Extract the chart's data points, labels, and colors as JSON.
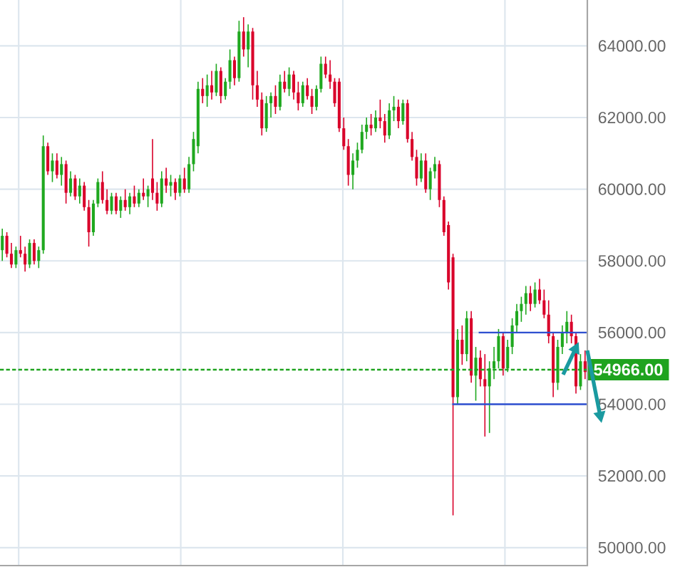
{
  "chart_data": {
    "type": "candlestick",
    "categories": [
      null,
      null,
      null,
      null,
      null,
      null,
      null,
      null,
      null,
      null,
      null,
      null,
      null,
      null,
      null,
      null,
      null,
      null,
      null,
      null,
      null,
      null,
      null,
      null,
      null,
      null,
      null,
      null,
      null,
      null,
      null,
      null,
      null,
      null,
      null,
      null,
      null,
      null,
      null,
      null,
      null,
      null,
      null,
      null,
      null,
      null,
      null,
      null,
      null,
      null,
      null,
      null,
      null,
      null,
      null,
      null,
      null,
      null,
      null,
      null,
      null,
      null,
      null,
      null,
      null,
      null,
      null,
      null,
      null,
      null,
      null,
      null,
      null,
      null,
      null,
      null,
      null,
      null,
      null,
      null,
      null,
      null,
      null,
      null,
      null,
      null,
      null,
      null,
      null,
      null,
      null,
      null,
      null,
      null,
      null,
      null,
      null,
      null,
      null,
      null,
      null,
      null,
      null,
      null,
      null,
      null,
      null,
      null,
      null,
      null,
      null,
      null,
      null,
      null,
      null,
      null,
      null,
      null,
      null,
      null,
      null,
      null,
      null,
      null,
      null,
      null,
      null,
      null,
      null
    ],
    "ohlc": [
      [
        58300,
        58900,
        58000,
        58700
      ],
      [
        58700,
        58800,
        58100,
        58200
      ],
      [
        58200,
        58500,
        57800,
        57900
      ],
      [
        57900,
        58400,
        57800,
        58300
      ],
      [
        58300,
        58700,
        58100,
        58200
      ],
      [
        58200,
        58400,
        57700,
        57900
      ],
      [
        57900,
        58600,
        57800,
        58500
      ],
      [
        58500,
        58600,
        57900,
        58000
      ],
      [
        58000,
        58400,
        57800,
        58300
      ],
      [
        58300,
        61500,
        58200,
        61200
      ],
      [
        61200,
        61300,
        60400,
        60500
      ],
      [
        60500,
        61000,
        60200,
        60800
      ],
      [
        60800,
        61000,
        60300,
        60400
      ],
      [
        60400,
        60900,
        60100,
        60700
      ],
      [
        60700,
        60800,
        59600,
        59900
      ],
      [
        59900,
        60500,
        59800,
        60300
      ],
      [
        60300,
        60400,
        59700,
        59800
      ],
      [
        59800,
        60300,
        59600,
        60100
      ],
      [
        60100,
        60200,
        59400,
        59500
      ],
      [
        59500,
        59700,
        58400,
        58800
      ],
      [
        58800,
        59700,
        58700,
        59600
      ],
      [
        59600,
        60300,
        59500,
        60200
      ],
      [
        60200,
        60500,
        59600,
        59700
      ],
      [
        59700,
        60000,
        59300,
        59400
      ],
      [
        59400,
        59900,
        59300,
        59800
      ],
      [
        59800,
        59900,
        59300,
        59400
      ],
      [
        59400,
        59800,
        59200,
        59700
      ],
      [
        59700,
        60000,
        59400,
        59500
      ],
      [
        59500,
        59900,
        59300,
        59800
      ],
      [
        59800,
        60100,
        59500,
        59600
      ],
      [
        59600,
        60000,
        59500,
        59900
      ],
      [
        59900,
        60300,
        59700,
        59800
      ],
      [
        59800,
        60100,
        59500,
        60000
      ],
      [
        60300,
        61400,
        59700,
        59900
      ],
      [
        59900,
        60200,
        59400,
        59600
      ],
      [
        59600,
        60500,
        59500,
        60300
      ],
      [
        60300,
        60600,
        59900,
        60100
      ],
      [
        60100,
        60400,
        59800,
        60200
      ],
      [
        60200,
        60300,
        59700,
        59900
      ],
      [
        59900,
        60400,
        59800,
        60300
      ],
      [
        60300,
        60600,
        59900,
        60000
      ],
      [
        60000,
        60900,
        59900,
        60700
      ],
      [
        60700,
        61600,
        60500,
        61400
      ],
      [
        61200,
        63000,
        61000,
        62800
      ],
      [
        62800,
        63100,
        62400,
        62600
      ],
      [
        62600,
        63200,
        62300,
        62900
      ],
      [
        62900,
        63300,
        62500,
        62700
      ],
      [
        62700,
        63500,
        62600,
        63300
      ],
      [
        63300,
        63400,
        62400,
        62600
      ],
      [
        62600,
        63100,
        62500,
        63000
      ],
      [
        63000,
        63900,
        62800,
        63600
      ],
      [
        63600,
        63700,
        62900,
        63100
      ],
      [
        63100,
        64700,
        63000,
        64400
      ],
      [
        64400,
        64800,
        63700,
        63900
      ],
      [
        63900,
        64600,
        63400,
        64400
      ],
      [
        64400,
        64500,
        62500,
        62900
      ],
      [
        62900,
        63300,
        62300,
        62500
      ],
      [
        62500,
        62700,
        61500,
        61700
      ],
      [
        61700,
        62600,
        61600,
        62400
      ],
      [
        62400,
        62700,
        62000,
        62600
      ],
      [
        62600,
        62900,
        62100,
        62300
      ],
      [
        62300,
        63200,
        62200,
        63000
      ],
      [
        63000,
        63300,
        62700,
        62800
      ],
      [
        62800,
        63400,
        62600,
        63200
      ],
      [
        63200,
        63300,
        62500,
        62700
      ],
      [
        62700,
        63000,
        62200,
        62400
      ],
      [
        62400,
        63000,
        62300,
        62900
      ],
      [
        62900,
        63100,
        62500,
        62600
      ],
      [
        62600,
        62800,
        62100,
        62300
      ],
      [
        62300,
        62900,
        62200,
        62800
      ],
      [
        62800,
        63700,
        62700,
        63500
      ],
      [
        63500,
        63700,
        63100,
        63200
      ],
      [
        63200,
        63600,
        62800,
        63000
      ],
      [
        63000,
        63100,
        62300,
        62400
      ],
      [
        63000,
        63100,
        61600,
        61700
      ],
      [
        61700,
        62000,
        61100,
        61200
      ],
      [
        61200,
        61400,
        60100,
        60400
      ],
      [
        60400,
        61000,
        60000,
        60800
      ],
      [
        60800,
        61300,
        60600,
        61100
      ],
      [
        61100,
        61800,
        61000,
        61600
      ],
      [
        61600,
        62000,
        61400,
        61800
      ],
      [
        61800,
        62100,
        61500,
        61700
      ],
      [
        61700,
        62200,
        61600,
        62000
      ],
      [
        62000,
        62500,
        61700,
        61900
      ],
      [
        61900,
        62100,
        61300,
        61500
      ],
      [
        61500,
        62400,
        61400,
        62200
      ],
      [
        62200,
        62600,
        61900,
        62300
      ],
      [
        62300,
        62500,
        61700,
        61900
      ],
      [
        61900,
        62500,
        61800,
        62400
      ],
      [
        62400,
        62500,
        61300,
        61400
      ],
      [
        61400,
        61600,
        60800,
        60900
      ],
      [
        60900,
        61100,
        60100,
        60300
      ],
      [
        60300,
        61000,
        60200,
        60800
      ],
      [
        60800,
        61000,
        59900,
        60000
      ],
      [
        60000,
        60600,
        59700,
        60500
      ],
      [
        60500,
        60900,
        60300,
        60700
      ],
      [
        60700,
        60800,
        59500,
        59700
      ],
      [
        59700,
        59800,
        58700,
        58800
      ],
      [
        59000,
        59100,
        57200,
        57400
      ],
      [
        58100,
        58200,
        50900,
        54200
      ],
      [
        54200,
        56100,
        54000,
        55800
      ],
      [
        55800,
        56200,
        55100,
        55400
      ],
      [
        55400,
        56600,
        55200,
        56400
      ],
      [
        56400,
        56600,
        54600,
        54800
      ],
      [
        54800,
        55600,
        54100,
        55300
      ],
      [
        55300,
        55500,
        54500,
        54700
      ],
      [
        54700,
        55400,
        53100,
        54500
      ],
      [
        54500,
        55200,
        53200,
        55000
      ],
      [
        55000,
        55600,
        54700,
        55200
      ],
      [
        55200,
        56100,
        55000,
        55900
      ],
      [
        55900,
        56000,
        54800,
        55000
      ],
      [
        55000,
        55800,
        54900,
        55600
      ],
      [
        55600,
        56400,
        55400,
        56200
      ],
      [
        56200,
        56800,
        56000,
        56600
      ],
      [
        56600,
        57000,
        56300,
        56800
      ],
      [
        56800,
        57300,
        56500,
        57100
      ],
      [
        57100,
        57300,
        56600,
        56800
      ],
      [
        56800,
        57400,
        56700,
        57200
      ],
      [
        57200,
        57500,
        56800,
        56900
      ],
      [
        56900,
        57200,
        56400,
        56500
      ],
      [
        56500,
        56900,
        55700,
        55900
      ],
      [
        55900,
        56000,
        54200,
        54600
      ],
      [
        54600,
        55800,
        54400,
        55600
      ],
      [
        55600,
        56200,
        55400,
        56000
      ],
      [
        56000,
        56600,
        55700,
        56300
      ],
      [
        56300,
        56500,
        55700,
        55900
      ],
      [
        55900,
        56000,
        54300,
        54500
      ],
      [
        54500,
        55400,
        54400,
        55200
      ],
      [
        55200,
        55500,
        54700,
        54900
      ]
    ],
    "ylim": [
      49500,
      65280
    ],
    "yticks": [
      {
        "value": 50000,
        "label": "50000.00"
      },
      {
        "value": 52000,
        "label": "52000.00"
      },
      {
        "value": 54000,
        "label": "54000.00"
      },
      {
        "value": 56000,
        "label": "56000.00"
      },
      {
        "value": 58000,
        "label": "58000.00"
      },
      {
        "value": 60000,
        "label": "60000.00"
      },
      {
        "value": 62000,
        "label": "62000.00"
      },
      {
        "value": 64000,
        "label": "64000.00"
      }
    ],
    "tick_labels": "y",
    "grid": true,
    "ref_lines": [
      {
        "axis": "y",
        "value": 54966,
        "label": "54966.00",
        "color": "#1fa31f",
        "line_style": "dashed"
      },
      {
        "axis": "y",
        "value": 56000,
        "label": null,
        "color": "#2e4fd0",
        "line_style": "solid"
      },
      {
        "axis": "y",
        "value": 54000,
        "label": null,
        "color": "#2e4fd0",
        "line_style": "solid"
      }
    ]
  }
}
